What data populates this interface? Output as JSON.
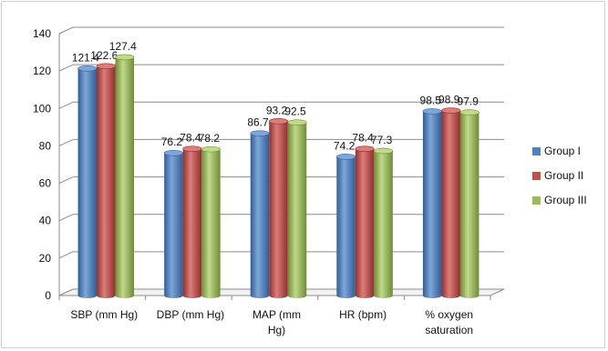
{
  "chart_data": {
    "type": "bar",
    "categories": [
      "SBP (mm Hg)",
      "DBP (mm Hg)",
      "MAP (mm Hg)",
      "HR (bpm)",
      "% oxygen saturation"
    ],
    "category_lines": [
      [
        "SBP (mm Hg)"
      ],
      [
        "DBP (mm Hg)"
      ],
      [
        "MAP (mm",
        "Hg)"
      ],
      [
        "HR (bpm)"
      ],
      [
        "% oxygen",
        "saturation"
      ]
    ],
    "series": [
      {
        "name": "Group I",
        "values": [
          121.4,
          76.2,
          86.7,
          74.2,
          98.5
        ],
        "color": "#4f81bd",
        "dark": "#2f5e96",
        "light": "#7ea6d8"
      },
      {
        "name": "Group II",
        "values": [
          122.6,
          78.4,
          93.2,
          78.4,
          98.9
        ],
        "color": "#c0504d",
        "dark": "#8f302e",
        "light": "#dd7d7a"
      },
      {
        "name": "Group III",
        "values": [
          127.4,
          78.2,
          92.5,
          77.3,
          97.9
        ],
        "color": "#9bbb59",
        "dark": "#6f8c34",
        "light": "#c0d98a"
      }
    ],
    "data_labels": [
      [
        "121.4",
        "76.2",
        "86.7",
        "74.2",
        "98.5"
      ],
      [
        "122.6",
        "78.4",
        "93.2",
        "78.4",
        "98.9"
      ],
      [
        "127.4",
        "78.2",
        "92.5",
        "77.3",
        "97.9"
      ]
    ],
    "yticks": [
      "0",
      "20",
      "40",
      "60",
      "80",
      "100",
      "120",
      "140"
    ],
    "ylim": [
      0,
      140
    ],
    "grid": true,
    "legend": "right",
    "title": "",
    "xlabel": "",
    "ylabel": ""
  }
}
